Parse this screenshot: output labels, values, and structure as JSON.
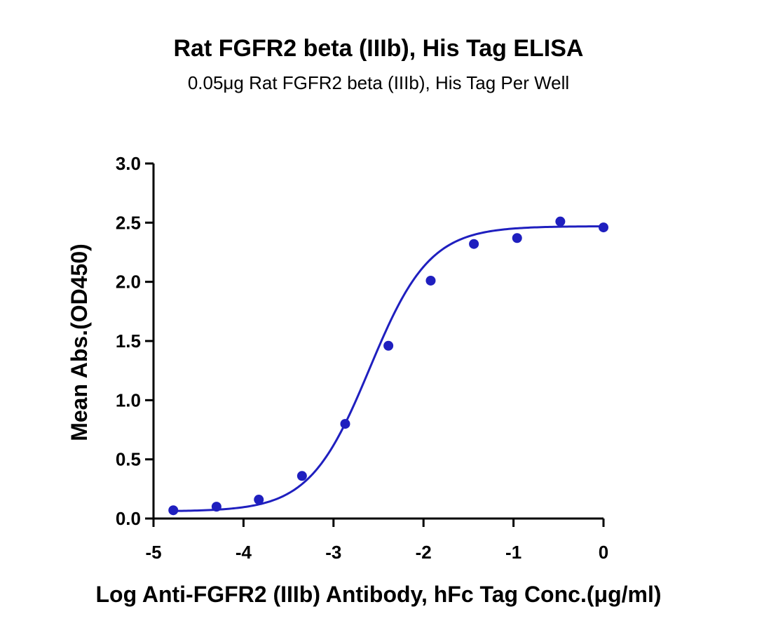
{
  "chart_data": {
    "type": "scatter",
    "title": "Rat FGFR2 beta (IIIb), His Tag ELISA",
    "subtitle": "0.05μg Rat FGFR2 beta (IIIb), His Tag Per Well",
    "xlabel": "Log Anti-FGFR2 (IIIb) Antibody, hFc Tag Conc.(μg/ml)",
    "ylabel": "Mean Abs.(OD450)",
    "xlim": [
      -5,
      0
    ],
    "ylim": [
      0,
      3.0
    ],
    "xticks": [
      -5,
      -4,
      -3,
      -2,
      -1,
      0
    ],
    "xtick_labels": [
      "-5",
      "-4",
      "-3",
      "-2",
      "-1",
      "0"
    ],
    "yticks": [
      0,
      0.5,
      1.0,
      1.5,
      2.0,
      2.5,
      3.0
    ],
    "ytick_labels": [
      "0.0",
      "0.5",
      "1.0",
      "1.5",
      "2.0",
      "2.5",
      "3.0"
    ],
    "grid": false,
    "series": [
      {
        "color": "#1f1fbf",
        "x": [
          -4.78,
          -4.3,
          -3.83,
          -3.35,
          -2.87,
          -2.39,
          -1.92,
          -1.44,
          -0.96,
          -0.48,
          0.0
        ],
        "y": [
          0.07,
          0.1,
          0.16,
          0.36,
          0.8,
          1.46,
          2.01,
          2.32,
          2.37,
          2.51,
          2.46
        ]
      }
    ],
    "fit_curve": {
      "color": "#1f1fbf",
      "bottom": 0.06,
      "top": 2.47,
      "logEC50": -2.6,
      "hill_slope": 1.3
    }
  }
}
